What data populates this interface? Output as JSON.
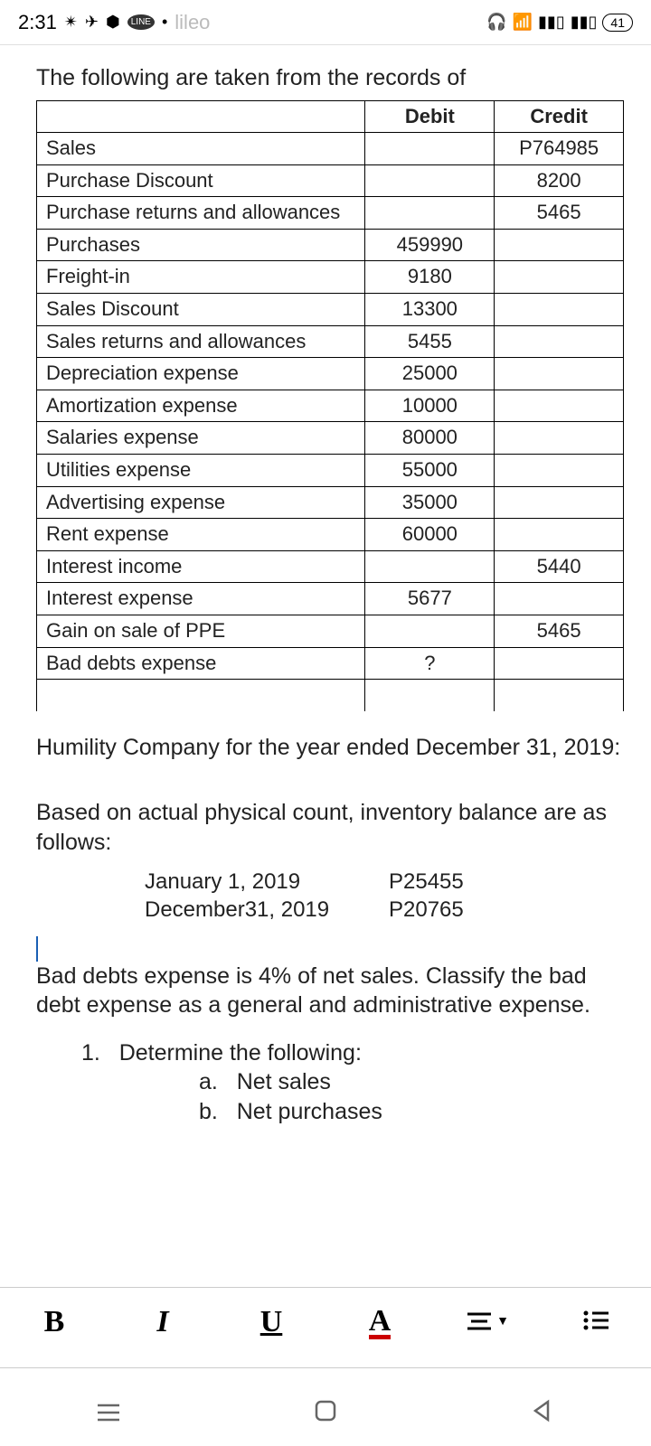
{
  "status": {
    "time": "2:31",
    "faded_text": "lileo",
    "battery": "41"
  },
  "document": {
    "intro": "The following are taken from the records of",
    "table": {
      "headers": {
        "debit": "Debit",
        "credit": "Credit"
      },
      "rows": [
        {
          "label": "Sales",
          "debit": "",
          "credit": "P764985"
        },
        {
          "label": "Purchase Discount",
          "debit": "",
          "credit": "8200"
        },
        {
          "label": "Purchase returns and allowances",
          "debit": "",
          "credit": "5465"
        },
        {
          "label": "Purchases",
          "debit": "459990",
          "credit": ""
        },
        {
          "label": "Freight-in",
          "debit": "9180",
          "credit": ""
        },
        {
          "label": "Sales Discount",
          "debit": "13300",
          "credit": ""
        },
        {
          "label": "Sales returns and allowances",
          "debit": "5455",
          "credit": ""
        },
        {
          "label": "Depreciation expense",
          "debit": "25000",
          "credit": ""
        },
        {
          "label": "Amortization expense",
          "debit": "10000",
          "credit": ""
        },
        {
          "label": "Salaries expense",
          "debit": "80000",
          "credit": ""
        },
        {
          "label": "Utilities expense",
          "debit": "55000",
          "credit": ""
        },
        {
          "label": "Advertising expense",
          "debit": "35000",
          "credit": ""
        },
        {
          "label": "Rent expense",
          "debit": "60000",
          "credit": ""
        },
        {
          "label": "Interest income",
          "debit": "",
          "credit": "5440"
        },
        {
          "label": "Interest expense",
          "debit": "5677",
          "credit": ""
        },
        {
          "label": "Gain on sale of PPE",
          "debit": "",
          "credit": "5465"
        },
        {
          "label": "Bad debts expense",
          "debit": "?",
          "credit": ""
        }
      ]
    },
    "company_line": "Humility Company for the year ended December 31, 2019:",
    "inventory_intro": "Based on actual physical count, inventory balance are as follows:",
    "inventory": [
      {
        "date": "January 1, 2019",
        "value": "P25455"
      },
      {
        "date": "December31, 2019",
        "value": "P20765"
      }
    ],
    "bad_debts": "Bad debts expense is 4% of net sales. Classify the bad debt expense as a general and administrative expense.",
    "question": {
      "num": "1.",
      "text": "Determine the following:",
      "subs": [
        {
          "letter": "a.",
          "text": "Net sales"
        },
        {
          "letter": "b.",
          "text": "Net purchases"
        }
      ]
    }
  },
  "toolbar": {
    "bold": "B",
    "italic": "I",
    "underline": "U",
    "color": "A"
  }
}
